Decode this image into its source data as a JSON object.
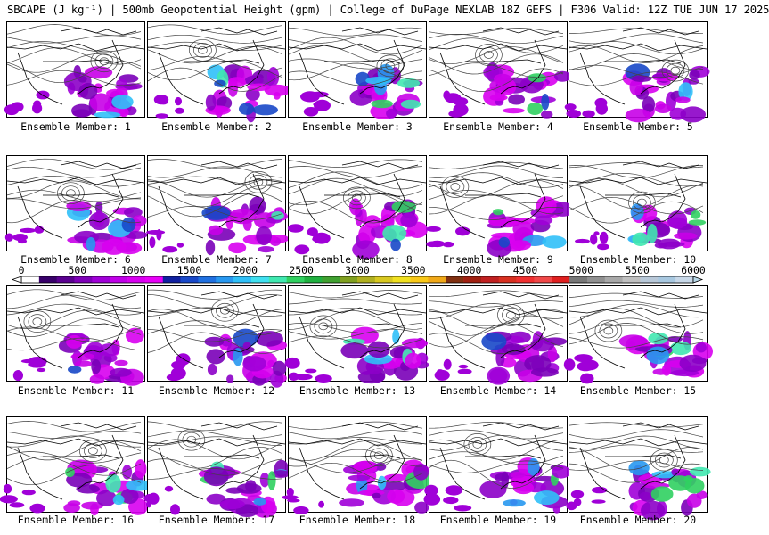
{
  "header": {
    "title": "SBCAPE (J kg⁻¹) | 500mb Geopotential Height (gpm) | College of DuPage NEXLAB 18Z GEFS | F306 Valid: 12Z TUE JUN 17 2025"
  },
  "panels": [
    {
      "label": "Ensemble Member: 1"
    },
    {
      "label": "Ensemble Member: 2"
    },
    {
      "label": "Ensemble Member: 3"
    },
    {
      "label": "Ensemble Member: 4"
    },
    {
      "label": "Ensemble Member: 5"
    },
    {
      "label": "Ensemble Member: 6"
    },
    {
      "label": "Ensemble Member: 7"
    },
    {
      "label": "Ensemble Member: 8"
    },
    {
      "label": "Ensemble Member: 9"
    },
    {
      "label": "Ensemble Member: 10"
    },
    {
      "label": "Ensemble Member: 11"
    },
    {
      "label": "Ensemble Member: 12"
    },
    {
      "label": "Ensemble Member: 13"
    },
    {
      "label": "Ensemble Member: 14"
    },
    {
      "label": "Ensemble Member: 15"
    },
    {
      "label": "Ensemble Member: 16"
    },
    {
      "label": "Ensemble Member: 17"
    },
    {
      "label": "Ensemble Member: 18"
    },
    {
      "label": "Ensemble Member: 19"
    },
    {
      "label": "Ensemble Member: 20"
    }
  ],
  "colorbar": {
    "tick_labels": [
      "0",
      "500",
      "1000",
      "1500",
      "2000",
      "2500",
      "3000",
      "3500",
      "4000",
      "4500",
      "5000",
      "5500",
      "6000"
    ],
    "min": 0,
    "max": 6000,
    "colors": [
      "#ffffff",
      "#38006a",
      "#5a0090",
      "#7e00b8",
      "#a000d8",
      "#c000e8",
      "#d800f0",
      "#e800f8",
      "#1020a0",
      "#1848c8",
      "#2070e0",
      "#2898f0",
      "#30c0f8",
      "#40e0f0",
      "#40e8b0",
      "#30d060",
      "#20b040",
      "#40a030",
      "#80a020",
      "#b0b020",
      "#d8c820",
      "#f0e020",
      "#f8c818",
      "#f0a818",
      "#803010",
      "#a02010",
      "#c02020",
      "#d83020",
      "#f03030",
      "#f04848",
      "#e02020",
      "#787878",
      "#909090",
      "#a8a8a8",
      "#c0c0c0",
      "#b8c8d8",
      "#a8c8e0",
      "#c8d8e8"
    ]
  }
}
